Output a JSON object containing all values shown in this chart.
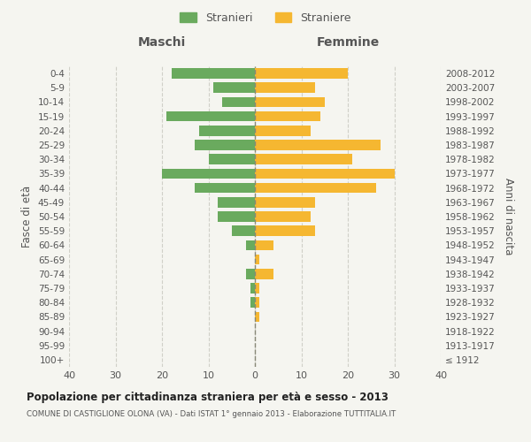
{
  "age_groups": [
    "100+",
    "95-99",
    "90-94",
    "85-89",
    "80-84",
    "75-79",
    "70-74",
    "65-69",
    "60-64",
    "55-59",
    "50-54",
    "45-49",
    "40-44",
    "35-39",
    "30-34",
    "25-29",
    "20-24",
    "15-19",
    "10-14",
    "5-9",
    "0-4"
  ],
  "birth_years": [
    "≤ 1912",
    "1913-1917",
    "1918-1922",
    "1923-1927",
    "1928-1932",
    "1933-1937",
    "1938-1942",
    "1943-1947",
    "1948-1952",
    "1953-1957",
    "1958-1962",
    "1963-1967",
    "1968-1972",
    "1973-1977",
    "1978-1982",
    "1983-1987",
    "1988-1992",
    "1993-1997",
    "1998-2002",
    "2003-2007",
    "2008-2012"
  ],
  "males": [
    0,
    0,
    0,
    0,
    1,
    1,
    2,
    0,
    2,
    5,
    8,
    8,
    13,
    20,
    10,
    13,
    12,
    19,
    7,
    9,
    18
  ],
  "females": [
    0,
    0,
    0,
    1,
    1,
    1,
    4,
    1,
    4,
    13,
    12,
    13,
    26,
    30,
    21,
    27,
    12,
    14,
    15,
    13,
    20
  ],
  "male_color": "#6aaa5e",
  "female_color": "#f5b731",
  "title": "Popolazione per cittadinanza straniera per età e sesso - 2013",
  "subtitle": "COMUNE DI CASTIGLIONE OLONA (VA) - Dati ISTAT 1° gennaio 2013 - Elaborazione TUTTITALIA.IT",
  "xlabel_left": "Maschi",
  "xlabel_right": "Femmine",
  "ylabel_left": "Fasce di età",
  "ylabel_right": "Anni di nascita",
  "legend_male": "Stranieri",
  "legend_female": "Straniere",
  "xlim": 40,
  "background_color": "#f5f5f0",
  "grid_color": "#d0d0c8",
  "text_color": "#555555",
  "center_line_color": "#888877"
}
